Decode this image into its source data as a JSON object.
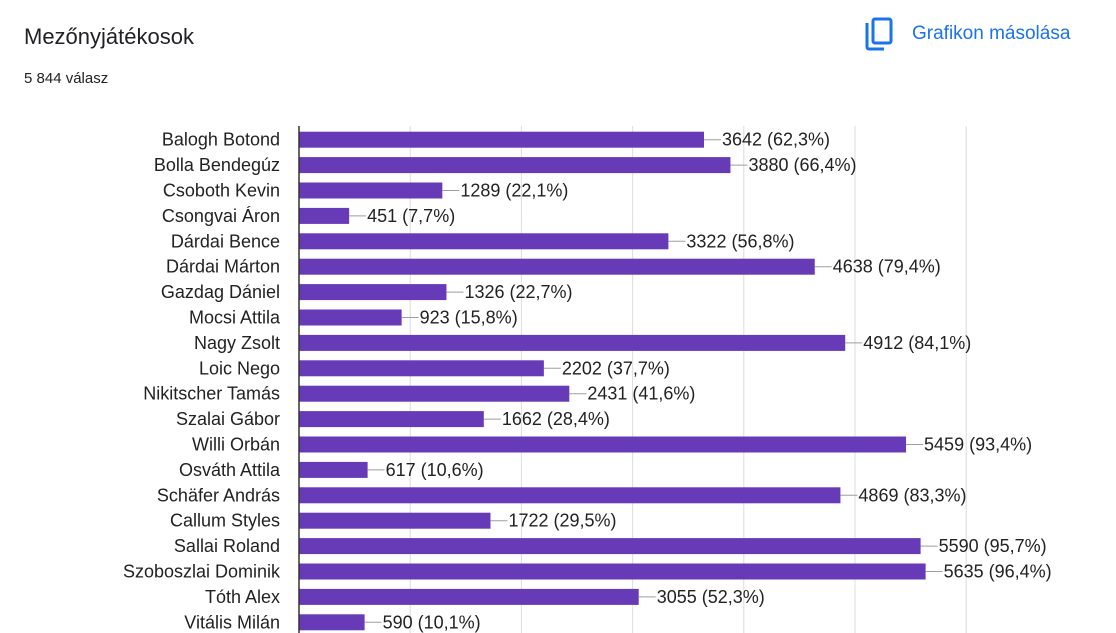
{
  "header": {
    "title": "Mezőnyjátékosok",
    "subtitle": "5 844 válasz",
    "copy_label": "Grafikon másolása",
    "copy_icon": "copy-icon"
  },
  "colors": {
    "bar": "#673ab7",
    "accent": "#1a73e8",
    "grid": "#dadce0"
  },
  "chart_data": {
    "type": "bar",
    "orientation": "horizontal",
    "title": "Mezőnyjátékosok",
    "subtitle": "5 844 válasz",
    "total": 5844,
    "categories": [
      "Balogh Botond",
      "Bolla Bendegúz",
      "Csoboth Kevin",
      "Csongvai Áron",
      "Dárdai Bence",
      "Dárdai Márton",
      "Gazdag Dániel",
      "Mocsi Attila",
      "Nagy Zsolt",
      "Loic Nego",
      "Nikitscher Tamás",
      "Szalai Gábor",
      "Willi Orbán",
      "Osváth Attila",
      "Schäfer András",
      "Callum Styles",
      "Sallai Roland",
      "Szoboszlai Dominik",
      "Tóth Alex",
      "Vitális Milán"
    ],
    "values": [
      3642,
      3880,
      1289,
      451,
      3322,
      4638,
      1326,
      923,
      4912,
      2202,
      2431,
      1662,
      5459,
      617,
      4869,
      1722,
      5590,
      5635,
      3055,
      590
    ],
    "labels": [
      "3642 (62,3%)",
      "3880 (66,4%)",
      "1289 (22,1%)",
      "451 (7,7%)",
      "3322 (56,8%)",
      "4638 (79,4%)",
      "1326 (22,7%)",
      "923 (15,8%)",
      "4912 (84,1%)",
      "2202 (37,7%)",
      "2431 (41,6%)",
      "1662 (28,4%)",
      "5459 (93,4%)",
      "617 (10,6%)",
      "4869 (83,3%)",
      "1722 (29,5%)",
      "5590 (95,7%)",
      "5635 (96,4%)",
      "3055 (52,3%)",
      "590 (10,1%)"
    ],
    "xlim": [
      0,
      6000
    ],
    "grid": true,
    "legend": "none"
  }
}
